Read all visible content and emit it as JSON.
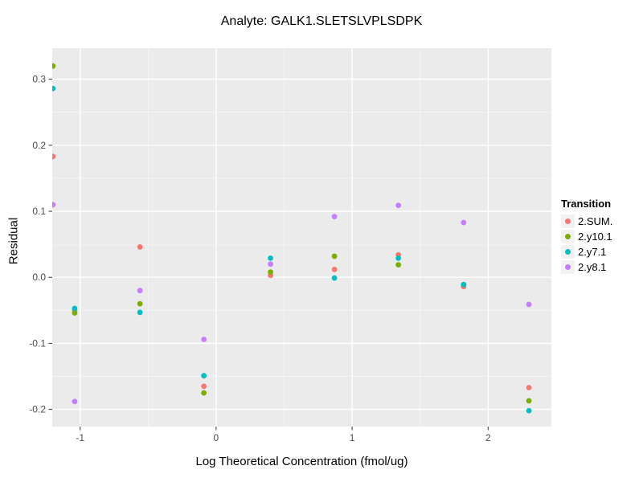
{
  "chart_data": {
    "type": "scatter",
    "title": "Analyte: GALK1.SLETSLVPLSDPK",
    "xlabel": "Log Theoretical Concentration (fmol/ug)",
    "ylabel": "Residual",
    "legend_title": "Transition",
    "legend_position": "right",
    "grid": "major+minor",
    "x_ticks": [
      -1,
      0,
      1,
      2
    ],
    "y_ticks": [
      0.3,
      0.2,
      0.1,
      0.0,
      -0.1,
      -0.2
    ],
    "xlim": [
      -1.205,
      2.465
    ],
    "ylim": [
      -0.226,
      0.347
    ],
    "series": [
      {
        "name": "2.SUM.",
        "color": "#F8766D",
        "points": [
          [
            -1.2,
            0.183
          ],
          [
            -1.04,
            -0.05
          ],
          [
            -0.56,
            0.046
          ],
          [
            -0.09,
            -0.165
          ],
          [
            0.4,
            0.003
          ],
          [
            0.87,
            0.012
          ],
          [
            1.34,
            0.034
          ],
          [
            1.82,
            -0.014
          ],
          [
            2.3,
            -0.167
          ]
        ]
      },
      {
        "name": "2.y10.1",
        "color": "#7CAE00",
        "points": [
          [
            -1.2,
            0.32
          ],
          [
            -1.04,
            -0.054
          ],
          [
            -0.56,
            -0.04
          ],
          [
            -0.09,
            -0.175
          ],
          [
            0.4,
            0.008
          ],
          [
            0.87,
            0.032
          ],
          [
            1.34,
            0.019
          ],
          [
            1.82,
            -0.011
          ],
          [
            2.3,
            -0.187
          ]
        ]
      },
      {
        "name": "2.y7.1",
        "color": "#00BFC4",
        "points": [
          [
            -1.2,
            0.286
          ],
          [
            -1.04,
            -0.047
          ],
          [
            -0.56,
            -0.053
          ],
          [
            -0.09,
            -0.149
          ],
          [
            0.4,
            0.029
          ],
          [
            0.87,
            -0.001
          ],
          [
            1.34,
            0.029
          ],
          [
            1.82,
            -0.011
          ],
          [
            2.3,
            -0.202
          ]
        ]
      },
      {
        "name": "2.y8.1",
        "color": "#C77CFF",
        "points": [
          [
            -1.2,
            0.11
          ],
          [
            -1.04,
            -0.188
          ],
          [
            -0.56,
            -0.02
          ],
          [
            -0.09,
            -0.094
          ],
          [
            0.4,
            0.02
          ],
          [
            0.87,
            0.092
          ],
          [
            1.34,
            0.109
          ],
          [
            1.82,
            0.083
          ],
          [
            2.3,
            -0.041
          ]
        ]
      }
    ]
  },
  "colors": {
    "background": "#FFFFFF",
    "panel_bg": "#EBEBEB",
    "grid_major": "#FFFFFF",
    "grid_minor": "#FFFFFF",
    "tick_mark": "#333333",
    "tick_label": "#4D4D4D",
    "legend_key_bg": "#F2F2F2",
    "text": "#000000"
  }
}
